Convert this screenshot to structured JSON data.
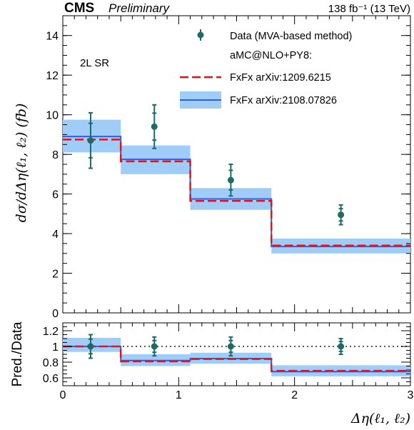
{
  "header": {
    "experiment": "CMS",
    "status": "Preliminary",
    "luminosity": "138 fb⁻¹ (13 TeV)"
  },
  "region_label": "2L SR",
  "legend": {
    "data": "Data (MVA-based method)",
    "generator": "aMC@NLO+PY8:",
    "fxfx_old": "FxFx arXiv:1209.6215",
    "fxfx_new": "FxFx arXiv:2108.07826"
  },
  "colors": {
    "data": "#1b6b66",
    "fxfx_old": "#e0141c",
    "fxfx_new": "#2f5fe0",
    "band": "#9fcdf8",
    "ratio_ref": "#555555"
  },
  "chart_data": [
    {
      "type": "step",
      "ylabel": "dσ/dΔη(ℓ₁, ℓ₂) (fb)",
      "ylim": [
        0,
        15
      ],
      "yticks": [
        0,
        2,
        4,
        6,
        8,
        10,
        12,
        14
      ],
      "xlim": [
        0,
        3
      ],
      "bin_edges": [
        0,
        0.5,
        1.1,
        1.8,
        3.0
      ],
      "data": {
        "name": "Data (MVA-based method)",
        "x": [
          0.24,
          0.79,
          1.45,
          2.4
        ],
        "y": [
          8.7,
          9.4,
          6.7,
          4.95
        ],
        "err": [
          1.4,
          1.1,
          0.8,
          0.5
        ]
      },
      "series": [
        {
          "name": "FxFx arXiv:1209.6215",
          "values": [
            8.75,
            7.65,
            5.65,
            3.4
          ]
        },
        {
          "name": "FxFx arXiv:2108.07826",
          "values": [
            8.9,
            7.75,
            5.75,
            3.35
          ]
        }
      ],
      "band": {
        "name": "FxFx arXiv:2108.07826",
        "low": [
          8.1,
          7.0,
          5.2,
          3.0
        ],
        "high": [
          9.75,
          8.45,
          6.3,
          3.75
        ]
      }
    },
    {
      "type": "step",
      "ylabel": "Pred./Data",
      "xlabel": "Δη(ℓ₁, ℓ₂)",
      "ylim": [
        0.5,
        1.3
      ],
      "yticks": [
        0.6,
        0.8,
        1.0,
        1.2
      ],
      "yticklabels": [
        "0.6",
        "0.8",
        "1",
        "1.2"
      ],
      "xlim": [
        0,
        3
      ],
      "xticks": [
        0,
        1,
        2,
        3
      ],
      "bin_edges": [
        0,
        0.5,
        1.1,
        1.8,
        3.0
      ],
      "reference": 1.0,
      "data": {
        "x": [
          0.24,
          0.79,
          1.45,
          2.4
        ],
        "y": [
          1.0,
          1.0,
          1.0,
          1.0
        ],
        "err": [
          0.15,
          0.12,
          0.12,
          0.1
        ]
      },
      "series": [
        {
          "name": "FxFx arXiv:1209.6215",
          "values": [
            1.0,
            0.81,
            0.84,
            0.69
          ]
        },
        {
          "name": "FxFx arXiv:2108.07826",
          "values": [
            1.0,
            0.82,
            0.845,
            0.68
          ]
        }
      ],
      "band": {
        "low": [
          0.93,
          0.75,
          0.78,
          0.62
        ],
        "high": [
          1.11,
          0.9,
          0.92,
          0.76
        ]
      }
    }
  ]
}
